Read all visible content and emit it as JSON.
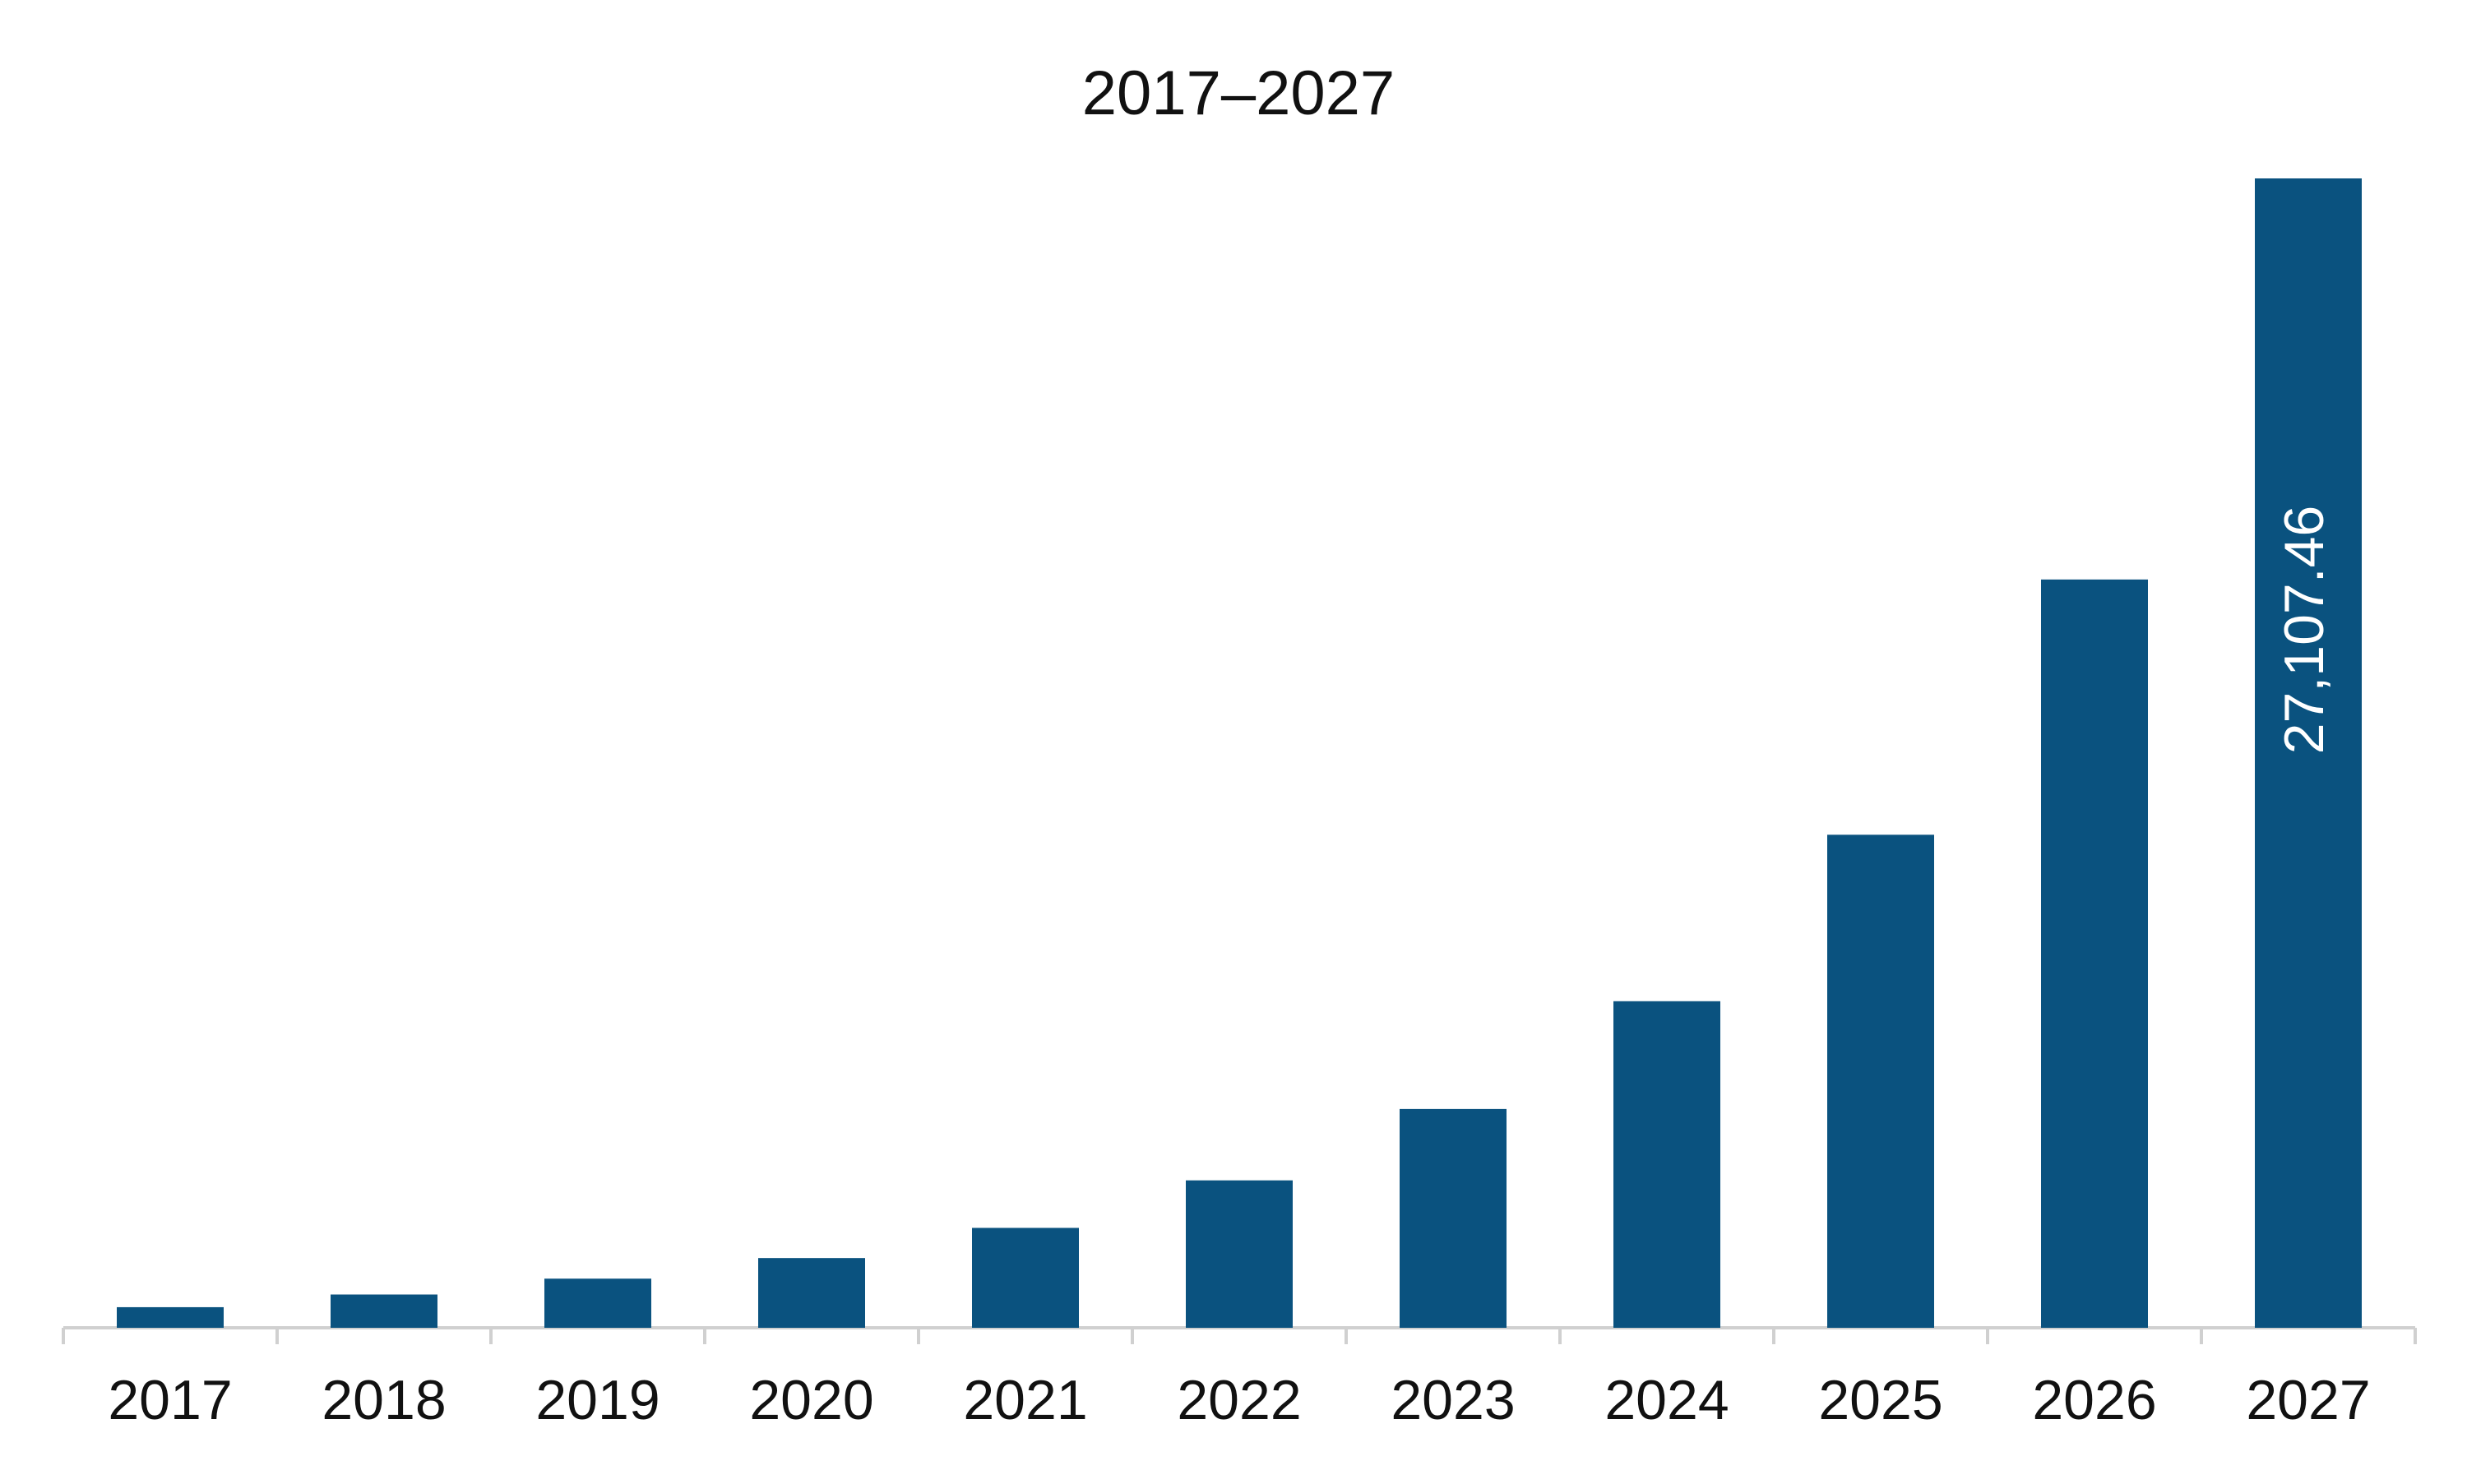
{
  "chart_data": {
    "type": "bar",
    "title": "2017–2027",
    "categories": [
      "2017",
      "2018",
      "2019",
      "2020",
      "2021",
      "2022",
      "2023",
      "2024",
      "2025",
      "2026",
      "2027"
    ],
    "values": [
      486,
      785,
      1159,
      1645,
      2356,
      3477,
      5160,
      7702,
      11628,
      17648,
      27107.46
    ],
    "value_labels": [
      null,
      null,
      null,
      null,
      null,
      null,
      null,
      null,
      null,
      null,
      "27,107.46"
    ],
    "color": "#0a527f"
  }
}
